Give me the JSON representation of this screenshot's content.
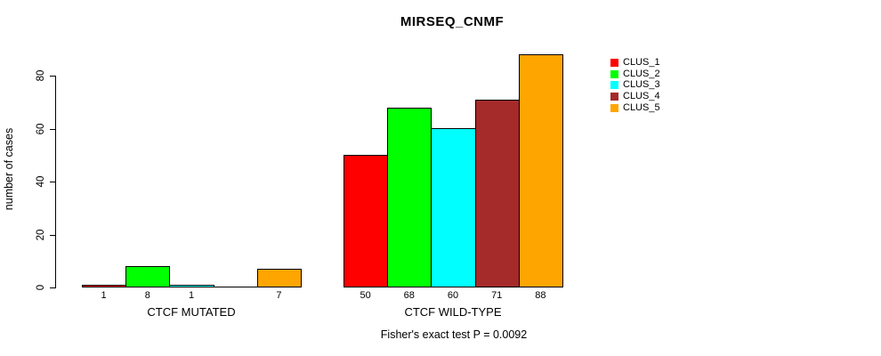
{
  "title": "MIRSEQ_CNMF",
  "ylabel": "number of cases",
  "footer": "Fisher's exact test P = 0.0092",
  "chart_data": {
    "type": "bar",
    "title": "MIRSEQ_CNMF",
    "xlabel": "",
    "ylabel": "number of cases",
    "ylim": [
      0,
      88
    ],
    "yticks": [
      0,
      20,
      40,
      60,
      80
    ],
    "grid": false,
    "legend_position": "right-outside",
    "categories": [
      "CTCF MUTATED",
      "CTCF WILD-TYPE"
    ],
    "series": [
      {
        "name": "CLUS_1",
        "color": "#FF0000",
        "values": [
          1,
          50
        ]
      },
      {
        "name": "CLUS_2",
        "color": "#00FF00",
        "values": [
          8,
          68
        ]
      },
      {
        "name": "CLUS_3",
        "color": "#00FFFF",
        "values": [
          1,
          60
        ]
      },
      {
        "name": "CLUS_4",
        "color": "#A52A2A",
        "values": [
          0,
          71
        ]
      },
      {
        "name": "CLUS_5",
        "color": "#FFA500",
        "values": [
          7,
          88
        ]
      }
    ],
    "bar_value_labels": [
      [
        "1",
        "8",
        "1",
        null,
        "7"
      ],
      [
        "50",
        "68",
        "60",
        "71",
        "88"
      ]
    ],
    "annotation": "Fisher's exact test P = 0.0092"
  }
}
